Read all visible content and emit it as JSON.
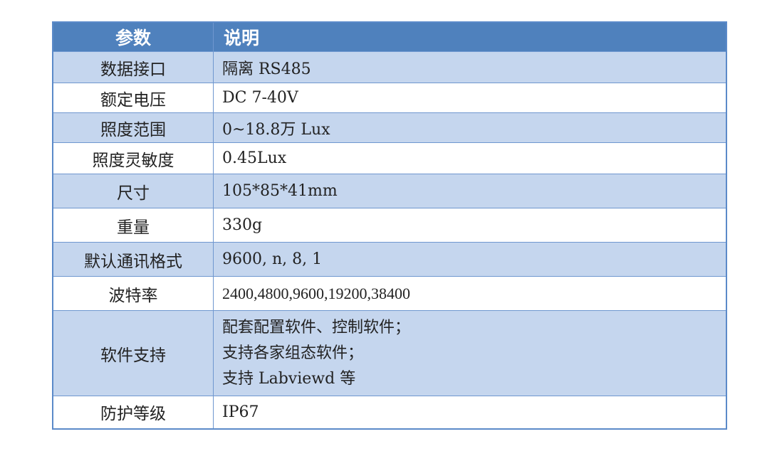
{
  "header": {
    "param": "参数",
    "desc": "说明"
  },
  "rows": [
    {
      "param": "数据接口",
      "desc": "隔离 RS485"
    },
    {
      "param": "额定电压",
      "desc": "DC 7-40V"
    },
    {
      "param": "照度范围",
      "desc": "0~18.8万 Lux"
    },
    {
      "param": "照度灵敏度",
      "desc": "0.45Lux"
    },
    {
      "param": "尺寸",
      "desc": "105*85*41mm"
    },
    {
      "param": "重量",
      "desc": "330g"
    },
    {
      "param": "默认通讯格式",
      "desc": "9600, n, 8, 1"
    },
    {
      "param": "波特率",
      "desc": "2400,4800,9600,19200,38400"
    },
    {
      "param": "软件支持",
      "desc_lines": [
        "配套配置软件、控制软件；",
        "支持各家组态软件；",
        "支持 Labviewd 等"
      ]
    },
    {
      "param": "防护等级",
      "desc": "IP67"
    }
  ],
  "colors": {
    "header": "#4f81bd",
    "row_alt": "#c5d6ee",
    "border": "#6f97cf"
  }
}
